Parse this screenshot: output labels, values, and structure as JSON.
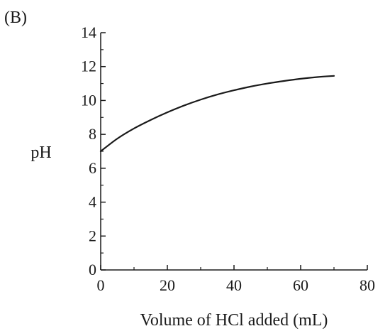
{
  "chart_data": {
    "type": "line",
    "panel_label": "(B)",
    "title": "",
    "xlabel": "Volume of HCl added (mL)",
    "ylabel": "pH",
    "xlim": [
      0,
      80
    ],
    "ylim": [
      0,
      14
    ],
    "x_ticks": [
      0,
      20,
      40,
      60,
      80
    ],
    "x_minor_ticks": [
      10,
      30,
      50,
      70
    ],
    "y_ticks": [
      0,
      2,
      4,
      6,
      8,
      10,
      12,
      14
    ],
    "y_minor_ticks": [
      1,
      3,
      5,
      7,
      9,
      11,
      13
    ],
    "grid": false,
    "line_color": "#1a1a1a",
    "series": [
      {
        "x": [
          0,
          5,
          10,
          15,
          20,
          25,
          30,
          35,
          40,
          45,
          50,
          55,
          60,
          65,
          70
        ],
        "y": [
          7.0,
          7.75,
          8.35,
          8.85,
          9.3,
          9.7,
          10.05,
          10.35,
          10.6,
          10.82,
          11.0,
          11.15,
          11.28,
          11.38,
          11.45
        ]
      }
    ]
  }
}
